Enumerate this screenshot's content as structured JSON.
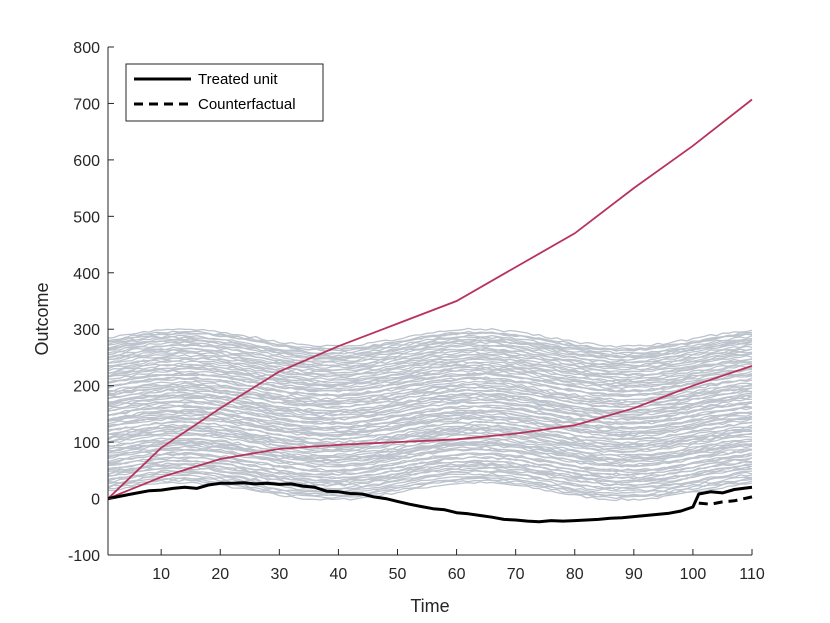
{
  "chart_data": {
    "type": "line",
    "title": "",
    "xlabel": "Time",
    "ylabel": "Outcome",
    "xlim": [
      1,
      110
    ],
    "ylim": [
      -100,
      800
    ],
    "xticks": [
      10,
      20,
      30,
      40,
      50,
      60,
      70,
      80,
      90,
      100,
      110
    ],
    "yticks": [
      -100,
      0,
      100,
      200,
      300,
      400,
      500,
      600,
      700,
      800
    ],
    "xticklabels": [
      "10",
      "20",
      "30",
      "40",
      "50",
      "60",
      "70",
      "80",
      "90",
      "100",
      "110"
    ],
    "yticklabels": [
      "-100",
      "0",
      "100",
      "200",
      "300",
      "400",
      "500",
      "600",
      "700",
      "800"
    ],
    "grid": false,
    "legend": {
      "placement": "top-left",
      "entries": [
        "Treated unit",
        "Counterfactual"
      ]
    },
    "colors": {
      "donors": "#bcc3cc",
      "highlight": "#b8335c",
      "treated": "#000000"
    },
    "donor_pool": {
      "count": 100,
      "base_range": [
        15,
        285
      ],
      "wave_amplitude": 15,
      "wave_period": 50,
      "noise": 2
    },
    "highlighted_series": [
      {
        "color": "#b8335c",
        "x": [
          1,
          10,
          20,
          30,
          40,
          50,
          60,
          70,
          80,
          90,
          100,
          110
        ],
        "y": [
          0,
          90,
          160,
          225,
          270,
          310,
          350,
          410,
          470,
          550,
          625,
          707
        ]
      },
      {
        "color": "#b8335c",
        "x": [
          1,
          10,
          20,
          30,
          40,
          50,
          60,
          70,
          80,
          90,
          100,
          110
        ],
        "y": [
          0,
          38,
          70,
          88,
          95,
          100,
          105,
          115,
          130,
          160,
          200,
          235
        ]
      }
    ],
    "series": [
      {
        "name": "Treated unit",
        "style": "solid",
        "x": [
          1,
          5,
          8,
          10,
          12,
          14,
          16,
          18,
          20,
          22,
          24,
          26,
          28,
          30,
          32,
          34,
          36,
          38,
          40,
          42,
          44,
          46,
          48,
          50,
          52,
          54,
          56,
          58,
          60,
          62,
          64,
          66,
          68,
          70,
          72,
          74,
          76,
          78,
          80,
          82,
          84,
          86,
          88,
          90,
          92,
          94,
          96,
          98,
          100,
          101,
          103,
          105,
          107,
          110
        ],
        "y": [
          0,
          8,
          14,
          15,
          18,
          20,
          18,
          24,
          27,
          27,
          28,
          26,
          27,
          25,
          26,
          22,
          20,
          13,
          12,
          9,
          8,
          3,
          0,
          -5,
          -10,
          -14,
          -18,
          -20,
          -25,
          -27,
          -30,
          -33,
          -37,
          -38,
          -40,
          -41,
          -39,
          -40,
          -39,
          -38,
          -37,
          -35,
          -34,
          -32,
          -30,
          -28,
          -26,
          -22,
          -15,
          8,
          12,
          10,
          16,
          20
        ]
      },
      {
        "name": "Counterfactual",
        "style": "dashed",
        "x": [
          101,
          103,
          105,
          107,
          110
        ],
        "y": [
          -8,
          -10,
          -6,
          -4,
          3
        ]
      }
    ]
  }
}
